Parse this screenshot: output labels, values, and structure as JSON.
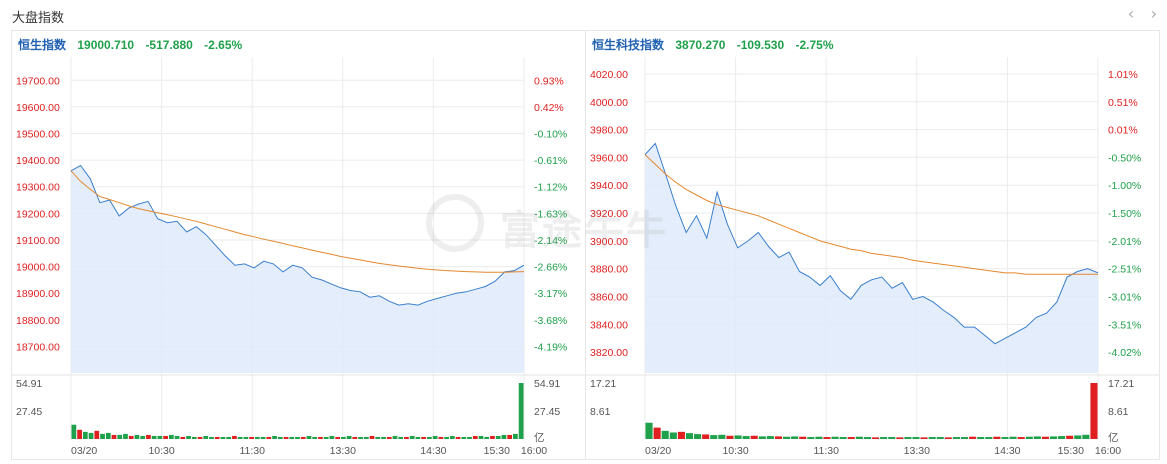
{
  "page": {
    "title": "大盘指数",
    "prev_glyph": "‹",
    "next_glyph": "›"
  },
  "watermark": {
    "text": "富途牛牛"
  },
  "colors": {
    "up": "#e02020",
    "down": "#1fa04a",
    "index_name": "#2262b3",
    "price_line": "#3a7fcb",
    "area_fill": "#dfeafa",
    "avg_line": "#e3882f",
    "grid": "#ebebeb"
  },
  "panels": [
    {
      "name": "恒生指数",
      "last": "19000.710",
      "change": "-517.880",
      "change_pct": "-2.65%"
    },
    {
      "name": "恒生科技指数",
      "last": "3870.270",
      "change": "-109.530",
      "change_pct": "-2.75%"
    }
  ],
  "chart_data": [
    {
      "type": "line",
      "title": "恒生指数",
      "x_ticks": [
        "03/20",
        "10:30",
        "11:30",
        "13:30",
        "14:30",
        "15:30",
        "16:00"
      ],
      "ylim": [
        18600,
        19750
      ],
      "y_ticks": [
        "19700.00",
        "19600.00",
        "19500.00",
        "19400.00",
        "19300.00",
        "19200.00",
        "19100.00",
        "19000.00",
        "18900.00",
        "18800.00",
        "18700.00"
      ],
      "y_tick_values": [
        19700,
        19600,
        19500,
        19400,
        19300,
        19200,
        19100,
        19000,
        18900,
        18800,
        18700
      ],
      "pct_ticks": [
        "0.93%",
        "0.42%",
        "-0.10%",
        "-0.61%",
        "-1.12%",
        "-1.63%",
        "-2.14%",
        "-2.66%",
        "-3.17%",
        "-3.68%",
        "-4.19%"
      ],
      "pct_colors": [
        "up",
        "up",
        "down",
        "down",
        "down",
        "down",
        "down",
        "down",
        "down",
        "down",
        "down"
      ],
      "price": [
        19360,
        19380,
        19330,
        19240,
        19250,
        19190,
        19220,
        19235,
        19245,
        19180,
        19165,
        19170,
        19130,
        19150,
        19120,
        19080,
        19040,
        19005,
        19010,
        18995,
        19020,
        19010,
        18980,
        19005,
        18995,
        18960,
        18950,
        18935,
        18920,
        18910,
        18905,
        18885,
        18890,
        18870,
        18855,
        18860,
        18855,
        18870,
        18880,
        18890,
        18900,
        18905,
        18915,
        18925,
        18945,
        18980,
        18985,
        19005
      ],
      "avg": [
        19360,
        19320,
        19290,
        19263,
        19252,
        19240,
        19228,
        19218,
        19210,
        19202,
        19195,
        19187,
        19178,
        19170,
        19160,
        19150,
        19140,
        19130,
        19120,
        19112,
        19103,
        19095,
        19087,
        19078,
        19070,
        19062,
        19054,
        19046,
        19038,
        19031,
        19025,
        19018,
        19012,
        19007,
        19002,
        18998,
        18994,
        18990,
        18987,
        18985,
        18983,
        18981,
        18980,
        18979,
        18979,
        18979,
        18980,
        18981
      ],
      "volume_ticks": [
        "54.91",
        "27.45",
        "亿"
      ],
      "volume_max": 54.91,
      "volume": [
        14,
        9,
        7,
        6,
        8,
        5,
        6,
        4,
        4,
        5,
        3,
        4,
        3,
        4,
        3,
        3,
        3,
        4,
        3,
        2,
        3,
        2,
        2,
        3,
        2,
        2,
        2,
        2,
        3,
        2,
        2,
        2,
        2,
        2,
        2,
        3,
        2,
        2,
        2,
        2,
        2,
        3,
        2,
        2,
        2,
        3,
        2,
        2,
        3,
        2,
        2,
        2,
        3,
        2,
        2,
        2,
        3,
        2,
        2,
        3,
        2,
        2,
        2,
        3,
        2,
        2,
        3,
        2,
        2,
        2,
        3,
        3,
        2,
        3,
        3,
        4,
        4,
        5,
        54.91
      ]
    },
    {
      "type": "line",
      "title": "恒生科技指数",
      "x_ticks": [
        "03/20",
        "10:30",
        "11:30",
        "13:30",
        "14:30",
        "15:30",
        "16:00"
      ],
      "ylim": [
        3805,
        4025
      ],
      "y_ticks": [
        "4020.00",
        "4000.00",
        "3980.00",
        "3960.00",
        "3940.00",
        "3920.00",
        "3900.00",
        "3880.00",
        "3860.00",
        "3840.00",
        "3820.00"
      ],
      "y_tick_values": [
        4020,
        4000,
        3980,
        3960,
        3940,
        3920,
        3900,
        3880,
        3860,
        3840,
        3820
      ],
      "pct_ticks": [
        "1.01%",
        "0.51%",
        "0.01%",
        "-0.50%",
        "-1.00%",
        "-1.50%",
        "-2.01%",
        "-2.51%",
        "-3.01%",
        "-3.51%",
        "-4.02%"
      ],
      "pct_colors": [
        "up",
        "up",
        "up",
        "down",
        "down",
        "down",
        "down",
        "down",
        "down",
        "down",
        "down"
      ],
      "price": [
        3962,
        3970,
        3948,
        3925,
        3906,
        3918,
        3902,
        3935,
        3912,
        3895,
        3900,
        3906,
        3896,
        3888,
        3892,
        3878,
        3874,
        3868,
        3875,
        3864,
        3858,
        3868,
        3872,
        3874,
        3866,
        3870,
        3858,
        3860,
        3856,
        3850,
        3845,
        3838,
        3838,
        3832,
        3826,
        3830,
        3834,
        3838,
        3845,
        3848,
        3856,
        3874,
        3878,
        3880,
        3877
      ],
      "avg": [
        3962,
        3955,
        3948,
        3942,
        3937,
        3933,
        3929,
        3926,
        3924,
        3922,
        3920,
        3918,
        3915,
        3912,
        3909,
        3906,
        3903,
        3900,
        3898,
        3896,
        3894,
        3893,
        3891,
        3890,
        3889,
        3888,
        3886,
        3885,
        3884,
        3883,
        3882,
        3881,
        3880,
        3879,
        3878,
        3877,
        3877,
        3876,
        3876,
        3876,
        3876,
        3876,
        3876,
        3876,
        3876
      ],
      "volume_ticks": [
        "17.21",
        "8.61",
        "亿"
      ],
      "volume_max": 17.21,
      "volume": [
        5,
        3.5,
        2.5,
        2,
        2.2,
        1.8,
        1.5,
        1.4,
        1.2,
        1.3,
        1,
        1.1,
        0.9,
        1,
        0.8,
        0.9,
        0.8,
        0.7,
        0.8,
        0.7,
        0.6,
        0.7,
        0.6,
        0.7,
        0.6,
        0.6,
        0.7,
        0.6,
        0.5,
        0.6,
        0.6,
        0.5,
        0.6,
        0.6,
        0.5,
        0.6,
        0.6,
        0.5,
        0.6,
        0.6,
        0.7,
        0.6,
        0.6,
        0.7,
        0.6,
        0.7,
        0.6,
        0.7,
        0.8,
        0.7,
        0.8,
        0.9,
        1,
        1.1,
        1.3,
        17.21
      ]
    }
  ]
}
